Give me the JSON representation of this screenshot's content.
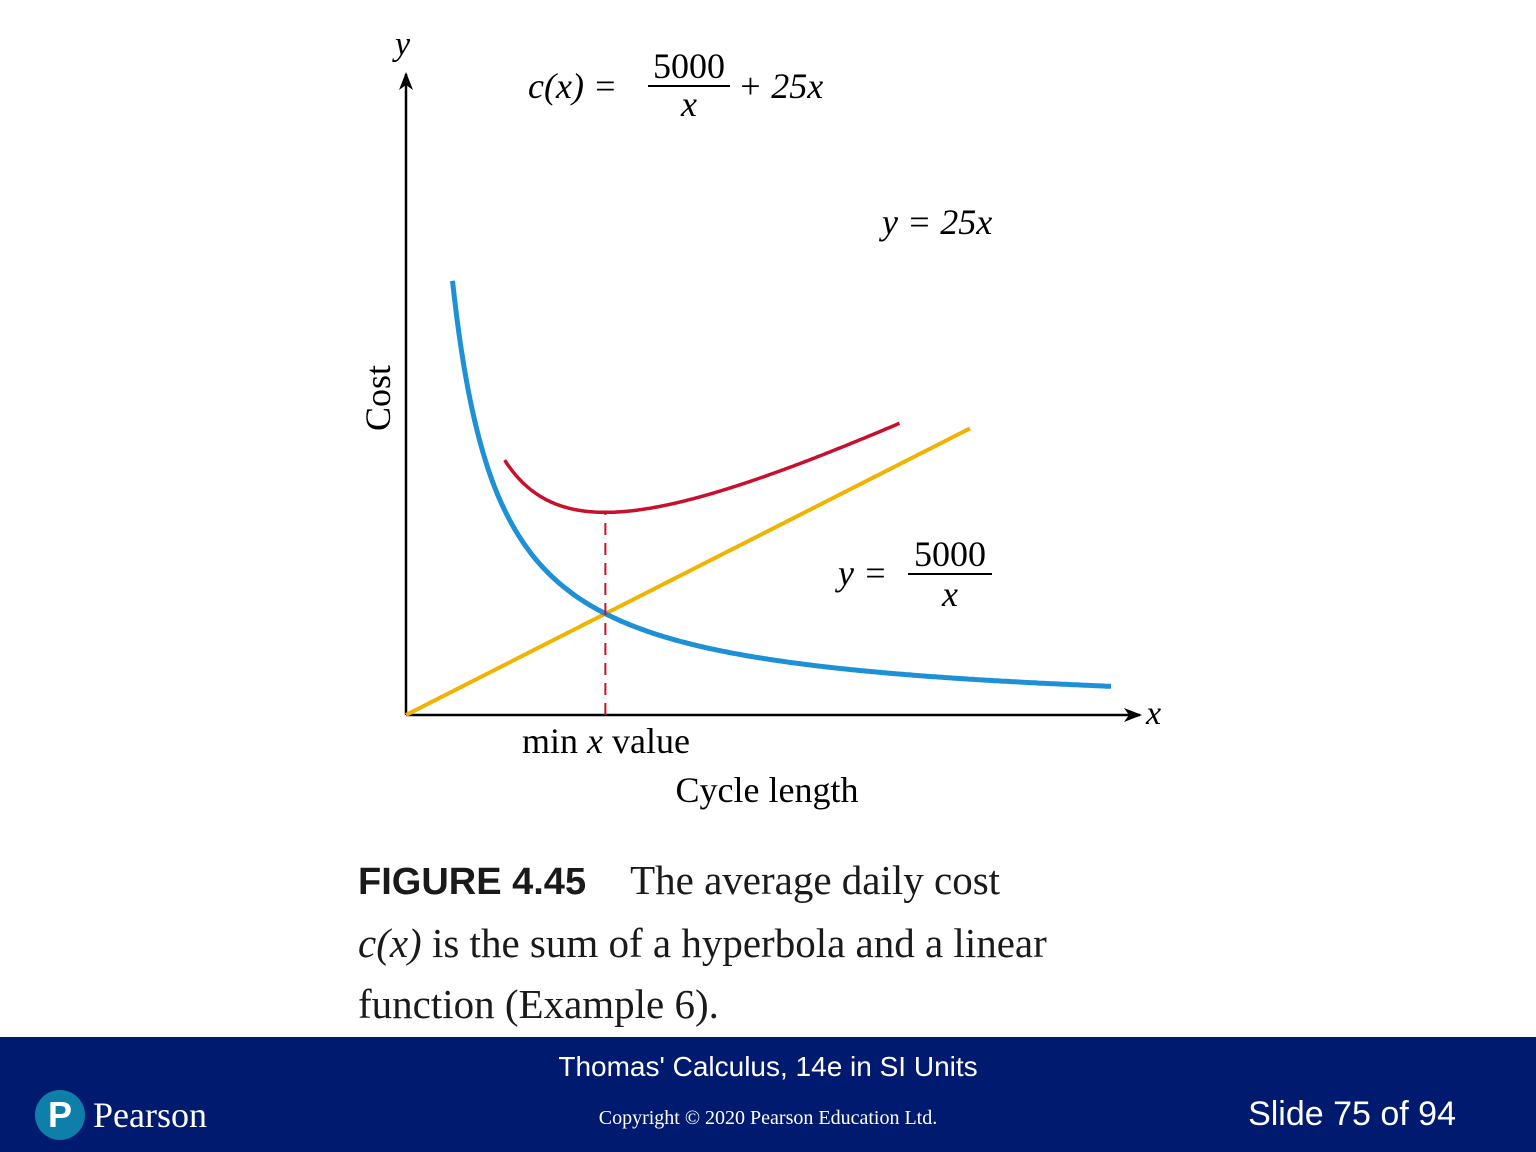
{
  "figure": {
    "axis_y_symbol": "y",
    "axis_x_symbol": "x",
    "ylabel": "Cost",
    "xlabel": "Cycle length",
    "min_label_pre": "min ",
    "min_label_var": "x",
    "min_label_post": " value",
    "label_cx": {
      "lhs": "c(x) =",
      "num": "5000",
      "den": "x",
      "rhs": "+ 25x"
    },
    "label_line": "y = 25x",
    "label_hyper": {
      "lhs": "y =",
      "num": "5000",
      "den": "x"
    },
    "colors": {
      "cost_curve": "#c8102e",
      "line": "#f0b400",
      "hyperbola": "#1e90d6",
      "min_marker": "#c8102e",
      "axes": "#000000"
    }
  },
  "caption": {
    "label": "FIGURE 4.45",
    "text_1": "The average daily cost",
    "cx": "c(x)",
    "text_2": " is the sum of a hyperbola and a linear",
    "text_3": "function (Example 6)."
  },
  "footer": {
    "book_title": "Thomas' Calculus, 14e in SI Units",
    "copyright": "Copyright © 2020 Pearson Education Ltd.",
    "slide_number": "Slide 75 of 94",
    "logo_letter": "P",
    "logo_text": "Pearson",
    "background": "#001a70",
    "logo_color": "#0d7fa8"
  },
  "chart_data": {
    "type": "line",
    "title": "",
    "xlabel": "Cycle length",
    "ylabel": "Cost",
    "grid": false,
    "xlim": [
      0,
      50
    ],
    "ylim": [
      0,
      2200
    ],
    "series": [
      {
        "name": "c(x) = 5000/x + 25x",
        "function": "5000/x + 25*x",
        "x_range": [
          7,
          35
        ]
      },
      {
        "name": "y = 25x",
        "function": "25*x",
        "x_range": [
          0,
          40
        ]
      },
      {
        "name": "y = 5000/x",
        "function": "5000/x",
        "x_range": [
          3.3,
          50
        ]
      }
    ],
    "annotations": [
      {
        "text": "min x value",
        "x": 14.14
      }
    ]
  }
}
